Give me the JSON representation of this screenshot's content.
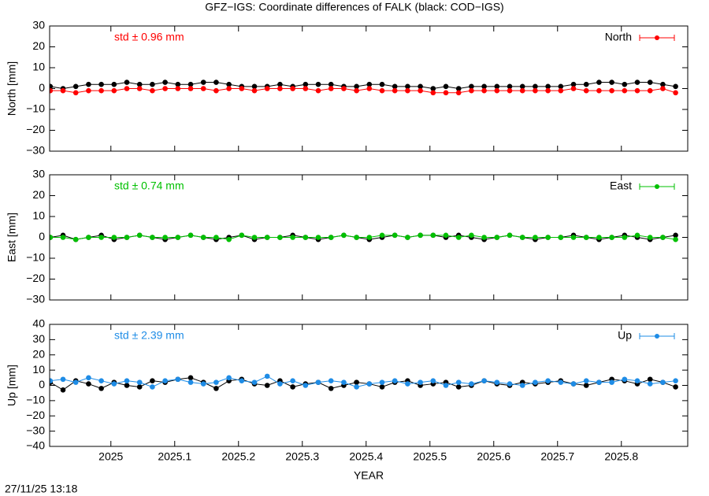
{
  "footer": "27/11/25 13:18",
  "chart_data": [
    {
      "type": "line",
      "title": "GFZ−IGS: Coordinate differences of FALK (black: COD−IGS)",
      "ylabel": "North [mm]",
      "annotation": "std ± 0.96 mm",
      "legend": "top-right",
      "x": [
        2024.905,
        2024.925,
        2024.945,
        2024.965,
        2024.985,
        2025.005,
        2025.025,
        2025.045,
        2025.065,
        2025.085,
        2025.105,
        2025.125,
        2025.145,
        2025.165,
        2025.185,
        2025.205,
        2025.225,
        2025.245,
        2025.265,
        2025.285,
        2025.305,
        2025.325,
        2025.345,
        2025.365,
        2025.385,
        2025.405,
        2025.425,
        2025.445,
        2025.465,
        2025.485,
        2025.505,
        2025.525,
        2025.545,
        2025.565,
        2025.585,
        2025.605,
        2025.625,
        2025.645,
        2025.665,
        2025.685,
        2025.705,
        2025.725,
        2025.745,
        2025.765,
        2025.785,
        2025.805,
        2025.825,
        2025.845,
        2025.865,
        2025.885
      ],
      "xlim": [
        2024.904,
        2025.904
      ],
      "ylim": [
        -30,
        30
      ],
      "yticks": [
        {
          "value": -30,
          "label": "−30"
        },
        {
          "value": -20,
          "label": "−20"
        },
        {
          "value": -10,
          "label": "−10"
        },
        0,
        10,
        20,
        30
      ],
      "series": [
        {
          "color": "#000000",
          "values": [
            1,
            0,
            1,
            2,
            2,
            2,
            3,
            2,
            2,
            3,
            2,
            2,
            3,
            3,
            2,
            1,
            1,
            1,
            2,
            1,
            2,
            2,
            2,
            1,
            1,
            2,
            2,
            1,
            1,
            1,
            0,
            1,
            0,
            1,
            1,
            1,
            1,
            1,
            1,
            1,
            1,
            2,
            2,
            3,
            3,
            2,
            3,
            3,
            2,
            1
          ]
        },
        {
          "name": "North",
          "color": "#ff0000",
          "values": [
            -1,
            -1,
            -2,
            -1,
            -1,
            -1,
            0,
            0,
            -1,
            0,
            0,
            0,
            0,
            -1,
            0,
            0,
            -1,
            0,
            0,
            0,
            0,
            -1,
            0,
            0,
            -1,
            0,
            -1,
            -1,
            -1,
            -1,
            -2,
            -2,
            -2,
            -1,
            -1,
            -1,
            -1,
            -1,
            -1,
            -1,
            -1,
            0,
            -1,
            -1,
            -1,
            -1,
            -1,
            -1,
            0,
            -2
          ]
        }
      ]
    },
    {
      "type": "line",
      "ylabel": "East [mm]",
      "annotation": "std ± 0.74 mm",
      "legend": "top-right",
      "x": [
        2024.905,
        2024.925,
        2024.945,
        2024.965,
        2024.985,
        2025.005,
        2025.025,
        2025.045,
        2025.065,
        2025.085,
        2025.105,
        2025.125,
        2025.145,
        2025.165,
        2025.185,
        2025.205,
        2025.225,
        2025.245,
        2025.265,
        2025.285,
        2025.305,
        2025.325,
        2025.345,
        2025.365,
        2025.385,
        2025.405,
        2025.425,
        2025.445,
        2025.465,
        2025.485,
        2025.505,
        2025.525,
        2025.545,
        2025.565,
        2025.585,
        2025.605,
        2025.625,
        2025.645,
        2025.665,
        2025.685,
        2025.705,
        2025.725,
        2025.745,
        2025.765,
        2025.785,
        2025.805,
        2025.825,
        2025.845,
        2025.865,
        2025.885
      ],
      "xlim": [
        2024.904,
        2025.904
      ],
      "ylim": [
        -30,
        30
      ],
      "yticks": [
        {
          "value": -30,
          "label": "−30"
        },
        {
          "value": -20,
          "label": "−20"
        },
        {
          "value": -10,
          "label": "−10"
        },
        0,
        10,
        20,
        30
      ],
      "series": [
        {
          "color": "#000000",
          "values": [
            0,
            1,
            -1,
            0,
            1,
            -1,
            0,
            1,
            0,
            -1,
            0,
            1,
            0,
            -1,
            0,
            1,
            -1,
            0,
            0,
            1,
            0,
            -1,
            0,
            1,
            0,
            -1,
            0,
            1,
            0,
            1,
            1,
            0,
            1,
            0,
            -1,
            0,
            1,
            0,
            -1,
            0,
            0,
            1,
            0,
            -1,
            0,
            1,
            0,
            -1,
            0,
            1
          ]
        },
        {
          "name": "East",
          "color": "#00c000",
          "values": [
            0,
            0,
            -1,
            0,
            0,
            0,
            0,
            1,
            0,
            0,
            0,
            1,
            0,
            0,
            -1,
            1,
            0,
            0,
            0,
            0,
            0,
            0,
            0,
            1,
            0,
            0,
            1,
            1,
            0,
            1,
            1,
            1,
            0,
            1,
            0,
            0,
            1,
            0,
            0,
            0,
            0,
            0,
            0,
            0,
            0,
            0,
            1,
            0,
            0,
            -1
          ]
        }
      ]
    },
    {
      "type": "line",
      "ylabel": "Up [mm]",
      "xlabel": "YEAR",
      "annotation": "std ± 2.39 mm",
      "legend": "top-right",
      "x": [
        2024.905,
        2024.925,
        2024.945,
        2024.965,
        2024.985,
        2025.005,
        2025.025,
        2025.045,
        2025.065,
        2025.085,
        2025.105,
        2025.125,
        2025.145,
        2025.165,
        2025.185,
        2025.205,
        2025.225,
        2025.245,
        2025.265,
        2025.285,
        2025.305,
        2025.325,
        2025.345,
        2025.365,
        2025.385,
        2025.405,
        2025.425,
        2025.445,
        2025.465,
        2025.485,
        2025.505,
        2025.525,
        2025.545,
        2025.565,
        2025.585,
        2025.605,
        2025.625,
        2025.645,
        2025.665,
        2025.685,
        2025.705,
        2025.725,
        2025.745,
        2025.765,
        2025.785,
        2025.805,
        2025.825,
        2025.845,
        2025.865,
        2025.885
      ],
      "xlim": [
        2024.904,
        2025.904
      ],
      "xticks": [
        2025,
        2025.1,
        2025.2,
        2025.3,
        2025.4,
        2025.5,
        2025.6,
        2025.7,
        2025.8
      ],
      "ylim": [
        -40,
        40
      ],
      "yticks": [
        {
          "value": -40,
          "label": "−40"
        },
        {
          "value": -30,
          "label": "−30"
        },
        {
          "value": -20,
          "label": "−20"
        },
        {
          "value": -10,
          "label": "−10"
        },
        0,
        10,
        20,
        30,
        40
      ],
      "series": [
        {
          "color": "#000000",
          "values": [
            2,
            -3,
            3,
            1,
            -2,
            2,
            0,
            -1,
            3,
            2,
            4,
            5,
            2,
            -2,
            3,
            4,
            1,
            0,
            3,
            -1,
            1,
            2,
            -2,
            0,
            2,
            1,
            -1,
            2,
            3,
            0,
            1,
            2,
            -1,
            0,
            3,
            1,
            0,
            2,
            1,
            2,
            3,
            1,
            0,
            2,
            4,
            3,
            1,
            4,
            2,
            -1
          ]
        },
        {
          "name": "Up",
          "color": "#1e8ce6",
          "values": [
            3,
            4,
            2,
            5,
            3,
            1,
            3,
            2,
            -1,
            3,
            4,
            2,
            1,
            2,
            5,
            3,
            2,
            6,
            1,
            3,
            0,
            2,
            3,
            2,
            -1,
            1,
            2,
            3,
            1,
            2,
            3,
            0,
            2,
            1,
            3,
            2,
            1,
            0,
            2,
            3,
            2,
            1,
            3,
            2,
            2,
            4,
            3,
            1,
            2,
            3
          ]
        }
      ]
    }
  ]
}
